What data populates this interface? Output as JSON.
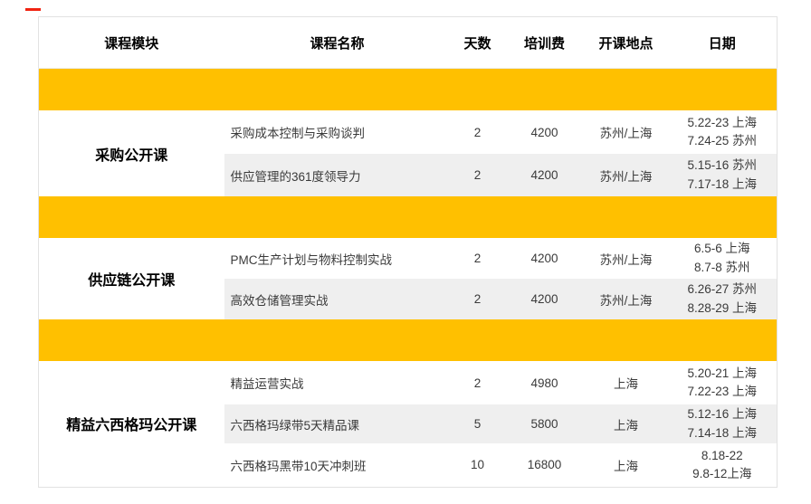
{
  "marker": {
    "color": "#f02311"
  },
  "colors": {
    "separator_band": "#FFC000",
    "stripe_row": "#efefef",
    "table_border": "#e2e2e2"
  },
  "table": {
    "headers": [
      "课程模块",
      "课程名称",
      "天数",
      "培训费",
      "开课地点",
      "日期"
    ],
    "sections": [
      {
        "module": "采购公开课",
        "courses": [
          {
            "name": "采购成本控制与采购谈判",
            "days": "2",
            "fee": "4200",
            "location": "苏州/上海",
            "dates": [
              "5.22-23 上海",
              "7.24-25 苏州"
            ]
          },
          {
            "name": "供应管理的361度领导力",
            "days": "2",
            "fee": "4200",
            "location": "苏州/上海",
            "dates": [
              "5.15-16 苏州",
              "7.17-18 上海"
            ]
          }
        ]
      },
      {
        "module": "供应链公开课",
        "courses": [
          {
            "name": "PMC生产计划与物料控制实战",
            "days": "2",
            "fee": "4200",
            "location": "苏州/上海",
            "dates": [
              "6.5-6 上海",
              "8.7-8 苏州"
            ]
          },
          {
            "name": "高效仓储管理实战",
            "days": "2",
            "fee": "4200",
            "location": "苏州/上海",
            "dates": [
              "6.26-27 苏州",
              "8.28-29 上海"
            ]
          }
        ]
      },
      {
        "module": "精益六西格玛公开课",
        "courses": [
          {
            "name": "精益运营实战",
            "days": "2",
            "fee": "4980",
            "location": "上海",
            "dates": [
              "5.20-21 上海",
              "7.22-23 上海"
            ]
          },
          {
            "name": "六西格玛绿带5天精品课",
            "days": "5",
            "fee": "5800",
            "location": "上海",
            "dates": [
              "5.12-16 上海",
              "7.14-18 上海"
            ]
          },
          {
            "name": "六西格玛黑带10天冲刺班",
            "days": "10",
            "fee": "16800",
            "location": "上海",
            "dates": [
              "8.18-22",
              "9.8-12上海"
            ]
          }
        ]
      }
    ]
  }
}
